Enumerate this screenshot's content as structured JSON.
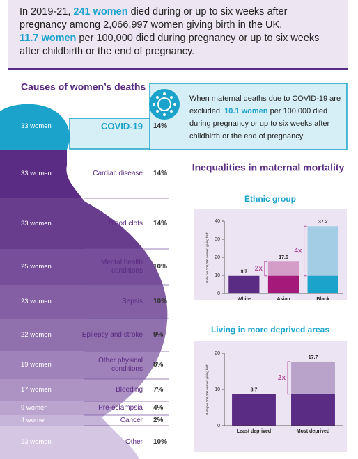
{
  "header": {
    "paragraphs": [
      [
        {
          "text": "In 2019-21, "
        },
        {
          "text": "241 women",
          "highlight": true
        },
        {
          "text": " died during or up to six weeks after pregnancy among 2,066,997 women giving birth in the UK."
        }
      ],
      [
        {
          "text": "11.7 women",
          "highlight": true
        },
        {
          "text": " per 100,000 died during pregnancy or up to six weeks after childbirth or the end of pregnancy."
        }
      ]
    ]
  },
  "causes": {
    "title": "Causes of women’s deaths",
    "rows": [
      {
        "count": "33 women",
        "cause": "COVID-19",
        "share": "14%",
        "highlight": true
      },
      {
        "count": "33 women",
        "cause": "Cardiac disease",
        "share": "14%"
      },
      {
        "count": "33 women",
        "cause": "Blood clots",
        "share": "14%"
      },
      {
        "count": "25 women",
        "cause": "Mental health conditions",
        "share": "10%"
      },
      {
        "count": "23 women",
        "cause": "Sepsis",
        "share": "10%"
      },
      {
        "count": "22 women",
        "cause": "Epilepsy and stroke",
        "share": "9%"
      },
      {
        "count": "19 women",
        "cause": "Other physical conditions",
        "share": "8%"
      },
      {
        "count": "17 women",
        "cause": "Bleeding",
        "share": "7%"
      },
      {
        "count": "9 women",
        "cause": "Pre-eclampsia",
        "share": "4%"
      },
      {
        "count": "4 women",
        "cause": "Cancer",
        "share": "2%"
      },
      {
        "count": "23 women",
        "cause": "Other",
        "share": "10%"
      }
    ]
  },
  "covid_note": {
    "parts": [
      {
        "text": "When maternal deaths due to COVID-19 are excluded, "
      },
      {
        "text": "10.1 women",
        "highlight": true
      },
      {
        "text": " per 100,000 died during pregnancy or up to six weeks after childbirth or the end of pregnancy"
      }
    ]
  },
  "inequalities": {
    "title": "Inequalities in maternal mortality"
  },
  "chart_data": [
    {
      "type": "bar",
      "title": "Ethnic group",
      "ylabel": "Rate per 100,000 women giving birth",
      "categories": [
        "White",
        "Asian",
        "Black"
      ],
      "values": [
        9.7,
        17.6,
        37.2
      ],
      "colors": [
        "#5b2c83",
        "#a5197a",
        "#1ba3cc"
      ],
      "ylim": [
        0,
        40
      ],
      "yticks": [
        0,
        10,
        20,
        30,
        40
      ],
      "annotations": [
        {
          "text": "2x",
          "category": 1
        },
        {
          "text": "4x",
          "category": 2
        }
      ]
    },
    {
      "type": "bar",
      "title": "Living in more deprived areas",
      "ylabel": "Rate per 100,000 women giving birth",
      "categories": [
        "Least deprived",
        "Most deprived"
      ],
      "values": [
        8.7,
        17.7
      ],
      "colors": [
        "#5b2c83",
        "#5b2c83"
      ],
      "ylim": [
        0,
        20
      ],
      "yticks": [
        0,
        10,
        20
      ],
      "annotations": [
        {
          "text": "2x",
          "category": 1
        }
      ]
    }
  ]
}
